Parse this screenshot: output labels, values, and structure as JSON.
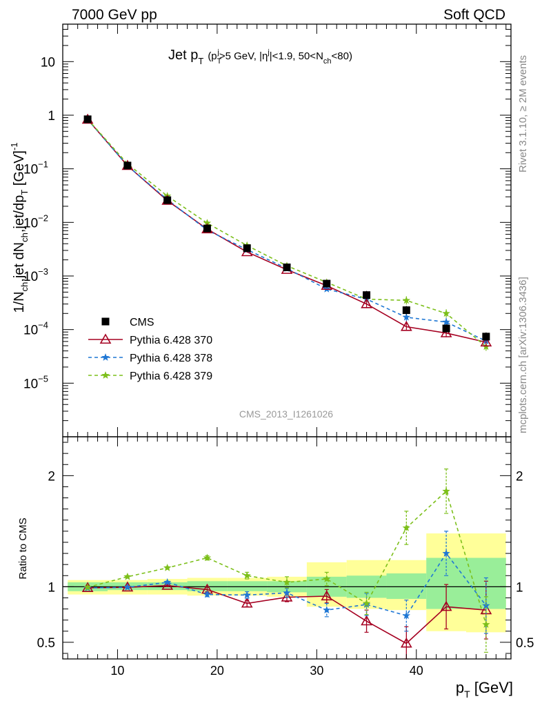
{
  "header": {
    "energy_label": "7000 GeV pp",
    "process_label": "Soft QCD",
    "rivet_label": "Rivet 3.1.10, ≥ 2M events",
    "site_label": "mcplots.cern.ch [arXiv:1306.3436]",
    "analysis_id": "CMS_2013_I1261026"
  },
  "chart_data": [
    {
      "type": "scatter",
      "panel": "main",
      "title": {
        "main": "Jet p",
        "main_sub": "T",
        "p": "(p",
        "p_sub": "T",
        "p_sup": "j",
        "cut1": ">5 GeV, |η",
        "eta_sup": "j",
        "cut2": "|<1.9, 50<N",
        "n_sub": "ch",
        "cut3": "<80)"
      },
      "ylabel": {
        "a": "1/N",
        "a_sub": "ch",
        "b": ",jet dN",
        "b_sub": "ch",
        "c": ",jet/dp",
        "c_sub": "T",
        "d": " [GeV]",
        "d_sup": "-1"
      },
      "yscale": "log",
      "ylim": [
        1e-06,
        50
      ],
      "xlim": [
        4.5,
        49.5
      ],
      "yticks": [
        {
          "v": 1e-05,
          "base": "10",
          "exp": "−5"
        },
        {
          "v": 0.0001,
          "base": "10",
          "exp": "−4"
        },
        {
          "v": 0.001,
          "base": "10",
          "exp": "−3"
        },
        {
          "v": 0.01,
          "base": "10",
          "exp": "−2"
        },
        {
          "v": 0.1,
          "base": "10",
          "exp": "−1"
        },
        {
          "v": 1,
          "base": "1",
          "exp": ""
        },
        {
          "v": 10,
          "base": "10",
          "exp": ""
        }
      ],
      "legend_position": "bottom-left",
      "x": [
        7,
        11,
        15,
        19,
        23,
        27,
        31,
        35,
        39,
        43,
        47
      ],
      "series": [
        {
          "name": "CMS",
          "marker": "square",
          "color": "#000000",
          "values": [
            0.84,
            0.115,
            0.026,
            0.0077,
            0.0033,
            0.00145,
            0.00072,
            0.00044,
            0.00023,
            0.000105,
            7.4e-05
          ]
        },
        {
          "name": "Pythia 6.428 370",
          "marker": "triangle-open",
          "color": "#a50021",
          "line": "solid",
          "values": [
            0.83,
            0.114,
            0.0255,
            0.0075,
            0.0028,
            0.00131,
            0.00066,
            0.0003,
            0.000113,
            8.6e-05,
            5.8e-05
          ]
        },
        {
          "name": "Pythia 6.428 378",
          "marker": "star",
          "color": "#1f77d4",
          "line": "dashed",
          "values": [
            0.83,
            0.114,
            0.0265,
            0.0072,
            0.0031,
            0.00138,
            0.00057,
            0.00037,
            0.00017,
            0.000138,
            6.1e-05
          ]
        },
        {
          "name": "Pythia 6.428 379",
          "marker": "star",
          "color": "#7cbf1a",
          "line": "dashed",
          "values": [
            0.84,
            0.124,
            0.031,
            0.0097,
            0.0037,
            0.00155,
            0.00076,
            0.00037,
            0.00035,
            0.0002,
            4.8e-05
          ]
        }
      ]
    },
    {
      "type": "scatter",
      "panel": "ratio",
      "ylabel": "Ratio to CMS",
      "xlabel": {
        "main": "p",
        "sub": "T",
        "unit": " [GeV]"
      },
      "xlim": [
        4.5,
        49.5
      ],
      "ylim": [
        0.35,
        2.35
      ],
      "yticks": [
        0.5,
        1,
        2
      ],
      "xticks": [
        10,
        20,
        30,
        40
      ],
      "x": [
        7,
        11,
        15,
        19,
        23,
        27,
        31,
        35,
        39,
        43,
        47
      ],
      "band_edges": [
        5,
        9,
        13,
        17,
        21,
        25,
        29,
        33,
        37,
        41,
        45,
        49
      ],
      "band_green": [
        [
          0.96,
          1.04
        ],
        [
          0.97,
          1.04
        ],
        [
          0.97,
          1.04
        ],
        [
          0.96,
          1.05
        ],
        [
          0.96,
          1.05
        ],
        [
          0.95,
          1.05
        ],
        [
          0.91,
          1.09
        ],
        [
          0.9,
          1.1
        ],
        [
          0.89,
          1.12
        ],
        [
          0.8,
          1.26
        ],
        [
          0.8,
          1.26
        ]
      ],
      "band_yellow": [
        [
          0.93,
          1.06
        ],
        [
          0.93,
          1.06
        ],
        [
          0.93,
          1.07
        ],
        [
          0.92,
          1.08
        ],
        [
          0.92,
          1.08
        ],
        [
          0.91,
          1.09
        ],
        [
          0.82,
          1.22
        ],
        [
          0.8,
          1.24
        ],
        [
          0.79,
          1.24
        ],
        [
          0.6,
          1.48
        ],
        [
          0.59,
          1.48
        ]
      ],
      "series": [
        {
          "name": "Pythia 6.428 370",
          "marker": "triangle-open",
          "color": "#a50021",
          "line": "solid",
          "values": [
            0.99,
            0.995,
            1.01,
            0.975,
            0.85,
            0.905,
            0.915,
            0.69,
            0.49,
            0.82,
            0.79
          ],
          "errors": [
            0.01,
            0.01,
            0.01,
            0.02,
            0.03,
            0.04,
            0.06,
            0.1,
            0.15,
            0.2,
            0.26
          ]
        },
        {
          "name": "Pythia 6.428 378",
          "marker": "star",
          "color": "#1f77d4",
          "line": "dashed",
          "values": [
            0.99,
            0.995,
            1.04,
            0.93,
            0.925,
            0.945,
            0.79,
            0.84,
            0.74,
            1.3,
            0.83
          ],
          "errors": [
            0.01,
            0.01,
            0.01,
            0.02,
            0.03,
            0.04,
            0.06,
            0.1,
            0.14,
            0.2,
            0.25
          ]
        },
        {
          "name": "Pythia 6.428 379",
          "marker": "star",
          "color": "#7cbf1a",
          "line": "dashed",
          "values": [
            0.995,
            1.09,
            1.17,
            1.26,
            1.1,
            1.04,
            1.07,
            0.85,
            1.53,
            1.86,
            0.66
          ],
          "errors": [
            0.01,
            0.01,
            0.01,
            0.02,
            0.03,
            0.05,
            0.06,
            0.1,
            0.15,
            0.2,
            0.25
          ]
        }
      ]
    }
  ]
}
